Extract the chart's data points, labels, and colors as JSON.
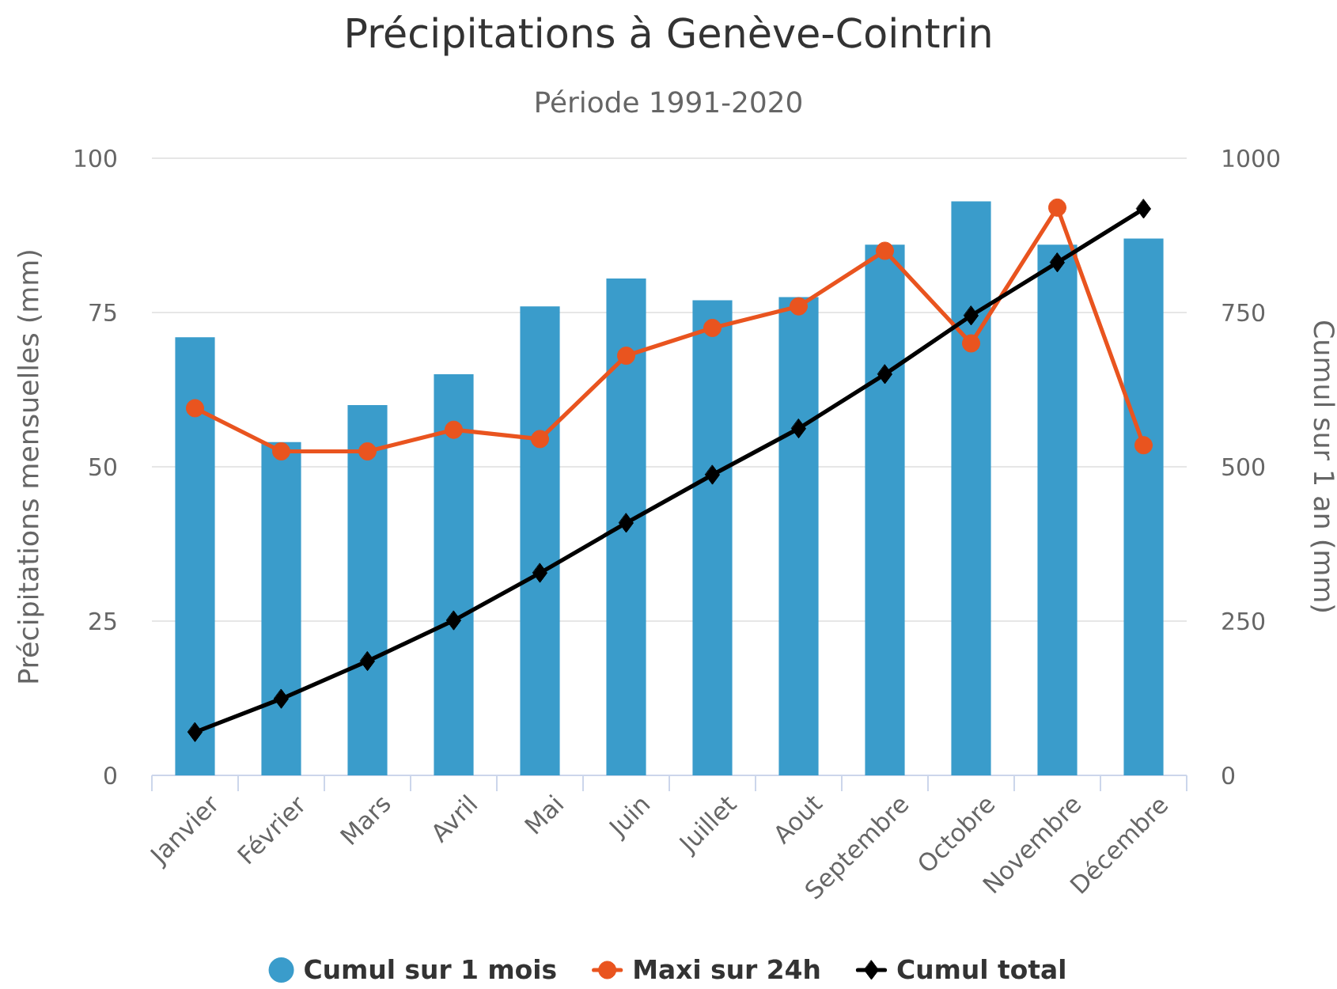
{
  "chart_data": {
    "type": "bar",
    "title": "Précipitations à Genève-Cointrin",
    "subtitle": "Période 1991-2020",
    "ylabel": "Précipitations mensuelles (mm)",
    "y2label": "Cumul sur 1 an (mm)",
    "categories": [
      "Janvier",
      "Février",
      "Mars",
      "Avril",
      "Mai",
      "Juin",
      "Juillet",
      "Aout",
      "Septembre",
      "Octobre",
      "Novembre",
      "Décembre"
    ],
    "series": [
      {
        "name": "Cumul sur 1 mois",
        "color": "#3a9ccb",
        "values": [
          71,
          54,
          60,
          65,
          76,
          80.5,
          77,
          77.5,
          86,
          93,
          86,
          87
        ]
      },
      {
        "name": "Maxi sur 24h",
        "type": "line",
        "color": "#e9541f",
        "marker": "circle",
        "values": [
          59.5,
          52.5,
          52.5,
          56,
          54.5,
          68,
          72.5,
          76,
          85,
          70,
          92,
          53.5
        ]
      },
      {
        "name": "Cumul total",
        "type": "line",
        "color": "#000000",
        "marker": "diamond",
        "axis": "y2",
        "values": [
          70,
          124,
          185,
          251,
          328,
          409,
          487,
          562,
          650,
          745,
          831,
          918
        ]
      }
    ],
    "ylim": [
      0,
      100
    ],
    "yticks": [
      0,
      25,
      50,
      75,
      100
    ],
    "y2lim": [
      0,
      1000
    ],
    "y2ticks": [
      0,
      250,
      500,
      750,
      1000
    ],
    "grid": "y",
    "legend": "bottom"
  }
}
